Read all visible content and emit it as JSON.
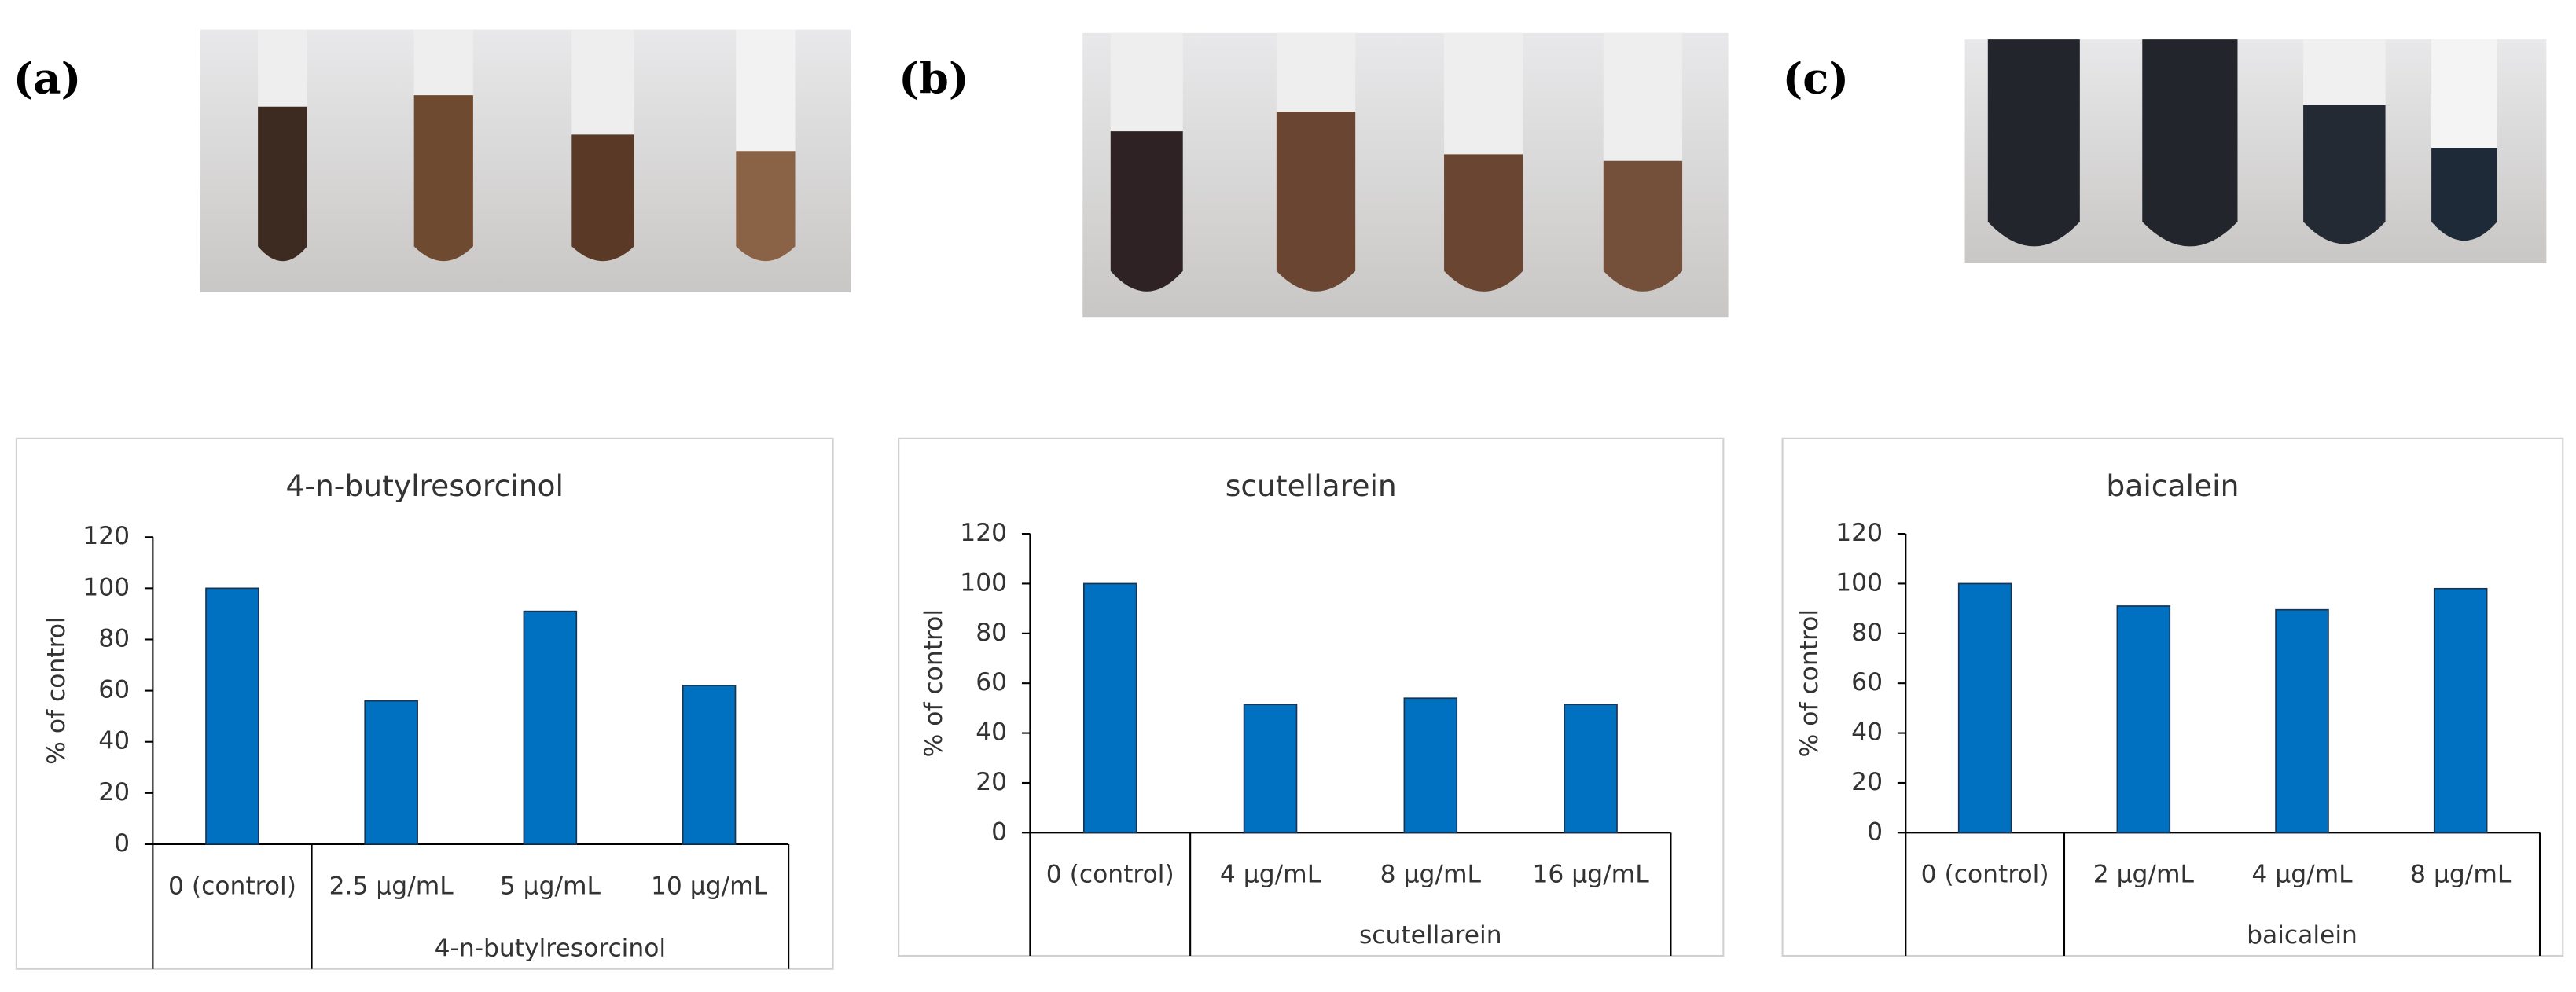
{
  "chart_data": [
    {
      "type": "bar",
      "panel_label": "(a)",
      "title": "4-n-butylresorcinol",
      "y_label": "% of control",
      "categories": [
        "0 (control)",
        "2.5 µg/mL",
        "5 µg/mL",
        "10 µg/mL"
      ],
      "group_label": "4-n-butylresorcinol",
      "values": [
        100,
        56,
        91,
        62
      ],
      "color": "#0070c0",
      "ylim": [
        0,
        120
      ],
      "yticks": [
        0,
        20,
        40,
        60,
        80,
        100,
        120
      ]
    },
    {
      "type": "bar",
      "panel_label": "(b)",
      "title": "scutellarein",
      "y_label": "% of control",
      "categories": [
        "0 (control)",
        "4 µg/mL",
        "8 µg/mL",
        "16 µg/mL"
      ],
      "group_label": "scutellarein",
      "values": [
        100,
        51.5,
        54,
        51.5
      ],
      "color": "#0070c0",
      "ylim": [
        0,
        120
      ],
      "yticks": [
        0,
        20,
        40,
        60,
        80,
        100,
        120
      ]
    },
    {
      "type": "bar",
      "panel_label": "(c)",
      "title": "baicalein",
      "y_label": "% of control",
      "categories": [
        "0 (control)",
        "2 µg/mL",
        "4 µg/mL",
        "8 µg/mL"
      ],
      "group_label": "baicalein",
      "values": [
        100,
        91,
        89.5,
        98
      ],
      "color": "#0070c0",
      "ylim": [
        0,
        120
      ],
      "yticks": [
        0,
        20,
        40,
        60,
        80,
        100,
        120
      ]
    }
  ]
}
